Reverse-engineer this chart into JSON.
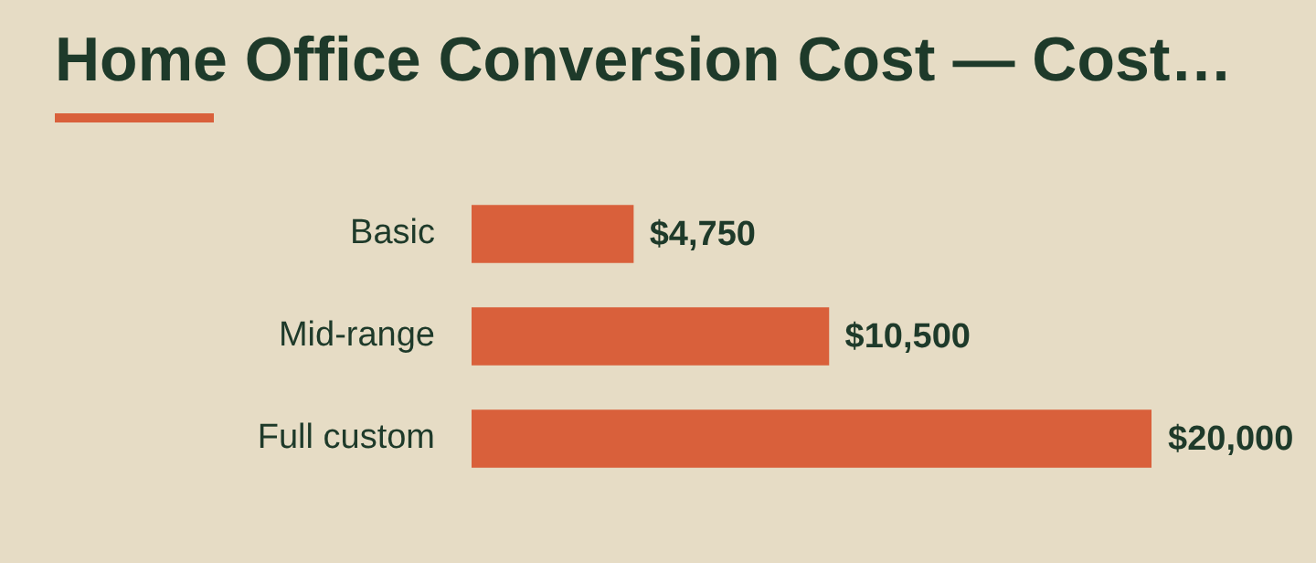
{
  "chart_data": {
    "type": "bar",
    "orientation": "horizontal",
    "title": "Home Office Conversion Cost — Cost…",
    "categories": [
      "Basic",
      "Mid-range",
      "Full custom"
    ],
    "values": [
      4750,
      10500,
      20000
    ],
    "value_labels": [
      "$4,750",
      "$10,500",
      "$20,000"
    ],
    "color": "#d9603b",
    "grid": false,
    "legend": false
  }
}
